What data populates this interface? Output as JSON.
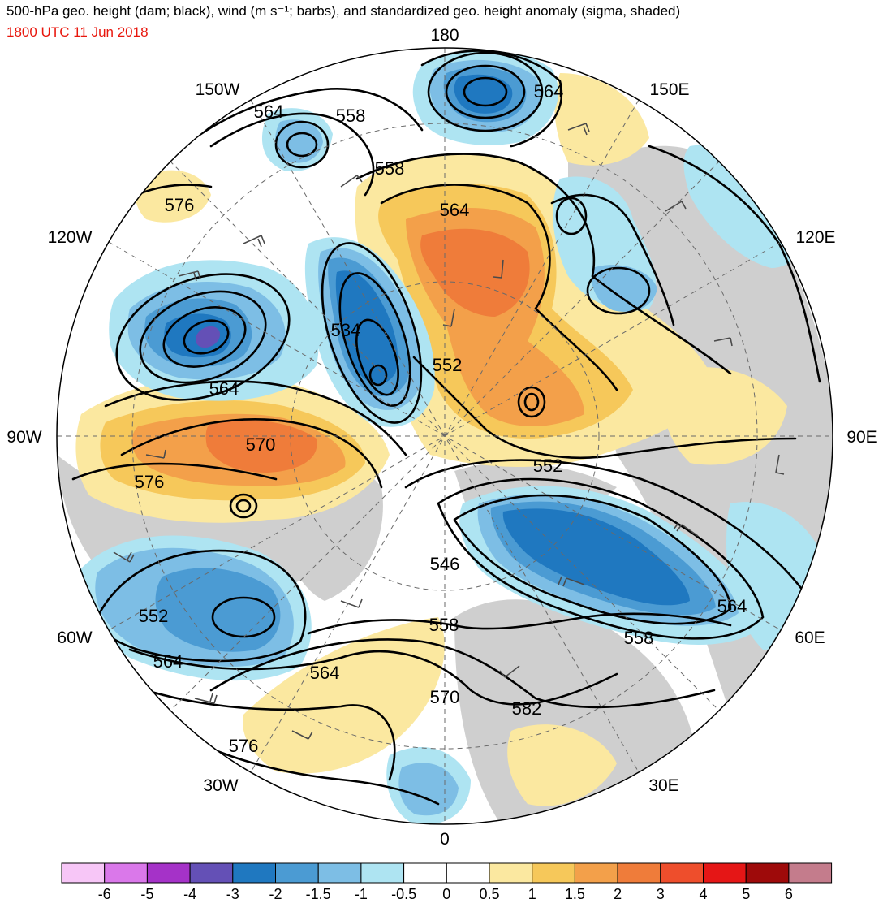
{
  "header": {
    "title": "500-hPa geo. height (dam; black), wind (m s⁻¹; barbs), and standardized geo. height anomaly (sigma, shaded)",
    "valid_time": "1800 UTC 11 Jun 2018"
  },
  "map": {
    "projection": "north-polar-stereographic",
    "longitude_labels": [
      {
        "id": "lon-180",
        "text": "180"
      },
      {
        "id": "lon-150e",
        "text": "150E"
      },
      {
        "id": "lon-120e",
        "text": "120E"
      },
      {
        "id": "lon-90e",
        "text": "90E"
      },
      {
        "id": "lon-60e",
        "text": "60E"
      },
      {
        "id": "lon-30e",
        "text": "30E"
      },
      {
        "id": "lon-0",
        "text": "0"
      },
      {
        "id": "lon-30w",
        "text": "30W"
      },
      {
        "id": "lon-60w",
        "text": "60W"
      },
      {
        "id": "lon-90w",
        "text": "90W"
      },
      {
        "id": "lon-120w",
        "text": "120W"
      },
      {
        "id": "lon-150w",
        "text": "150W"
      }
    ],
    "contour_labels": [
      "564",
      "558",
      "564",
      "576",
      "558",
      "564",
      "534",
      "552",
      "564",
      "570",
      "576",
      "552",
      "546",
      "552",
      "558",
      "564",
      "564",
      "558",
      "564",
      "570",
      "582",
      "576"
    ]
  },
  "colorbar": {
    "colors": [
      "#f7c6f7",
      "#da78ea",
      "#a532c8",
      "#6450b6",
      "#1f78c0",
      "#4b9bd3",
      "#7dbee5",
      "#aee4f2",
      "#ffffff",
      "#ffffff",
      "#fbe8a0",
      "#f6c85a",
      "#f3a04a",
      "#ef7c3a",
      "#ee4e2c",
      "#e51616",
      "#9e0a0a",
      "#c47c8c"
    ],
    "tick_labels": [
      "-6",
      "-5",
      "-4",
      "-3",
      "-2",
      "-1.5",
      "-1",
      "-0.5",
      "0",
      "0.5",
      "1",
      "1.5",
      "2",
      "3",
      "4",
      "5",
      "6"
    ]
  },
  "fill_colors": {
    "land": "#cfcfcf",
    "blue_light": "#aee4f2",
    "blue_mid": "#7dbee5",
    "blue_dark": "#4b9bd3",
    "blue_deep": "#1f78c0",
    "purple": "#6450b6",
    "yellow": "#fbe8a0",
    "gold": "#f6c85a",
    "orange_light": "#f3a04a",
    "orange": "#ef7c3a"
  }
}
